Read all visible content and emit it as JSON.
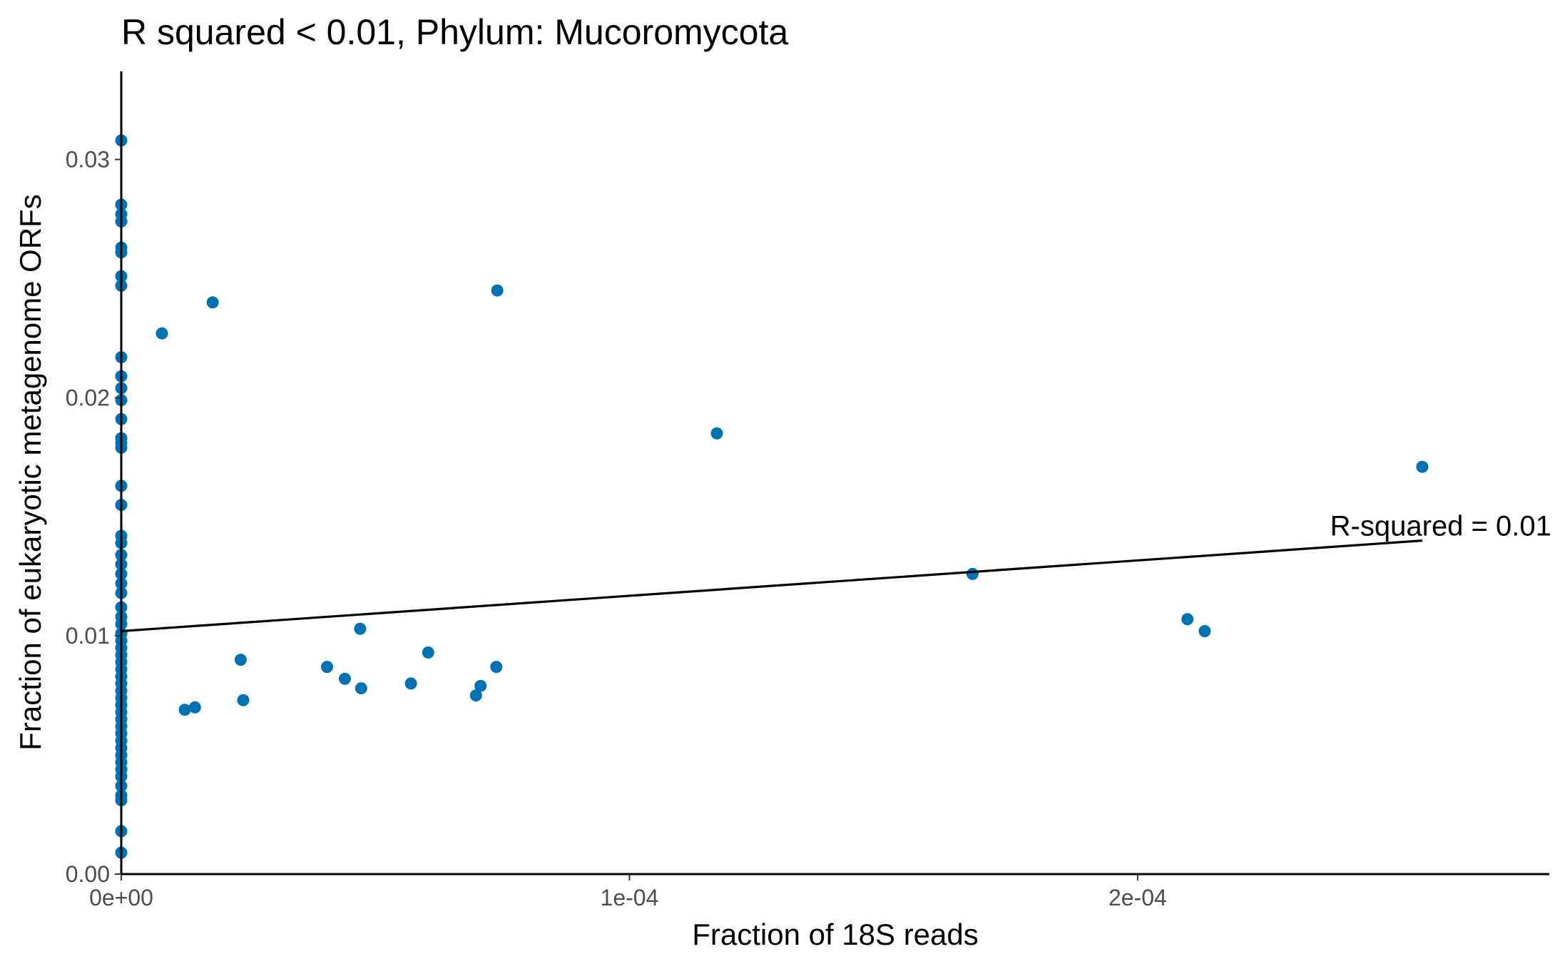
{
  "chart_data": {
    "type": "scatter",
    "title": "R squared < 0.01, Phylum:  Mucoromycota",
    "xlabel": "Fraction of 18S reads",
    "ylabel": "Fraction of eukaryotic metagenome ORFs",
    "xlim": [
      0,
      0.000281
    ],
    "ylim": [
      0,
      0.0337
    ],
    "x_ticks": [
      0,
      0.0001,
      0.0002
    ],
    "x_tick_labels": [
      "0e+00",
      "1e-04",
      "2e-04"
    ],
    "y_ticks": [
      0,
      0.01,
      0.02,
      0.03
    ],
    "y_tick_labels": [
      "0.00",
      "0.01",
      "0.02",
      "0.03"
    ],
    "grid": false,
    "point_color": "#0072B2",
    "line_color": "#000000",
    "annotation": {
      "text": "R-squared =  0.01",
      "x": 0.000256,
      "y": 0.0146
    },
    "fit_line": {
      "x": [
        0,
        0.000256
      ],
      "y": [
        0.0102,
        0.014
      ]
    },
    "points": [
      {
        "x": 0,
        "y": 0.0308
      },
      {
        "x": 0,
        "y": 0.0281
      },
      {
        "x": 0,
        "y": 0.0277
      },
      {
        "x": 0,
        "y": 0.0274
      },
      {
        "x": 0,
        "y": 0.0263
      },
      {
        "x": 0,
        "y": 0.0261
      },
      {
        "x": 0,
        "y": 0.0251
      },
      {
        "x": 0,
        "y": 0.0247
      },
      {
        "x": 0,
        "y": 0.0217
      },
      {
        "x": 0,
        "y": 0.0209
      },
      {
        "x": 0,
        "y": 0.0204
      },
      {
        "x": 0,
        "y": 0.0199
      },
      {
        "x": 0,
        "y": 0.0191
      },
      {
        "x": 0,
        "y": 0.0183
      },
      {
        "x": 0,
        "y": 0.0181
      },
      {
        "x": 0,
        "y": 0.0179
      },
      {
        "x": 0,
        "y": 0.0163
      },
      {
        "x": 0,
        "y": 0.0155
      },
      {
        "x": 0,
        "y": 0.0142
      },
      {
        "x": 0,
        "y": 0.0139
      },
      {
        "x": 0,
        "y": 0.0134
      },
      {
        "x": 0,
        "y": 0.013
      },
      {
        "x": 0,
        "y": 0.0126
      },
      {
        "x": 0,
        "y": 0.0122
      },
      {
        "x": 0,
        "y": 0.0118
      },
      {
        "x": 0,
        "y": 0.0112
      },
      {
        "x": 0,
        "y": 0.0108
      },
      {
        "x": 0,
        "y": 0.0105
      },
      {
        "x": 0,
        "y": 0.0101
      },
      {
        "x": 0,
        "y": 0.0098
      },
      {
        "x": 0,
        "y": 0.0095
      },
      {
        "x": 0,
        "y": 0.0092
      },
      {
        "x": 0,
        "y": 0.0089
      },
      {
        "x": 0,
        "y": 0.0086
      },
      {
        "x": 0,
        "y": 0.0083
      },
      {
        "x": 0,
        "y": 0.008
      },
      {
        "x": 0,
        "y": 0.0077
      },
      {
        "x": 0,
        "y": 0.0074
      },
      {
        "x": 0,
        "y": 0.0071
      },
      {
        "x": 0,
        "y": 0.0068
      },
      {
        "x": 0,
        "y": 0.0065
      },
      {
        "x": 0,
        "y": 0.0062
      },
      {
        "x": 0,
        "y": 0.0059
      },
      {
        "x": 0,
        "y": 0.0056
      },
      {
        "x": 0,
        "y": 0.0053
      },
      {
        "x": 0,
        "y": 0.005
      },
      {
        "x": 0,
        "y": 0.0047
      },
      {
        "x": 0,
        "y": 0.0044
      },
      {
        "x": 0,
        "y": 0.0041
      },
      {
        "x": 0,
        "y": 0.0037
      },
      {
        "x": 0,
        "y": 0.0033
      },
      {
        "x": 0,
        "y": 0.0031
      },
      {
        "x": 0,
        "y": 0.0018
      },
      {
        "x": 0,
        "y": 0.0009
      },
      {
        "x": 8e-06,
        "y": 0.0227
      },
      {
        "x": 1.8e-05,
        "y": 0.024
      },
      {
        "x": 1.25e-05,
        "y": 0.0069
      },
      {
        "x": 1.45e-05,
        "y": 0.007
      },
      {
        "x": 2.35e-05,
        "y": 0.009
      },
      {
        "x": 2.4e-05,
        "y": 0.0073
      },
      {
        "x": 4.05e-05,
        "y": 0.0087
      },
      {
        "x": 4.4e-05,
        "y": 0.0082
      },
      {
        "x": 4.7e-05,
        "y": 0.0103
      },
      {
        "x": 4.72e-05,
        "y": 0.0078
      },
      {
        "x": 5.7e-05,
        "y": 0.008
      },
      {
        "x": 6.04e-05,
        "y": 0.0093
      },
      {
        "x": 6.98e-05,
        "y": 0.0075
      },
      {
        "x": 7.07e-05,
        "y": 0.0079
      },
      {
        "x": 7.38e-05,
        "y": 0.0087
      },
      {
        "x": 7.4e-05,
        "y": 0.0245
      },
      {
        "x": 0.0001172,
        "y": 0.0185
      },
      {
        "x": 0.0001675,
        "y": 0.0126
      },
      {
        "x": 0.0002098,
        "y": 0.0107
      },
      {
        "x": 0.0002132,
        "y": 0.0102
      },
      {
        "x": 0.000256,
        "y": 0.0171
      }
    ]
  }
}
